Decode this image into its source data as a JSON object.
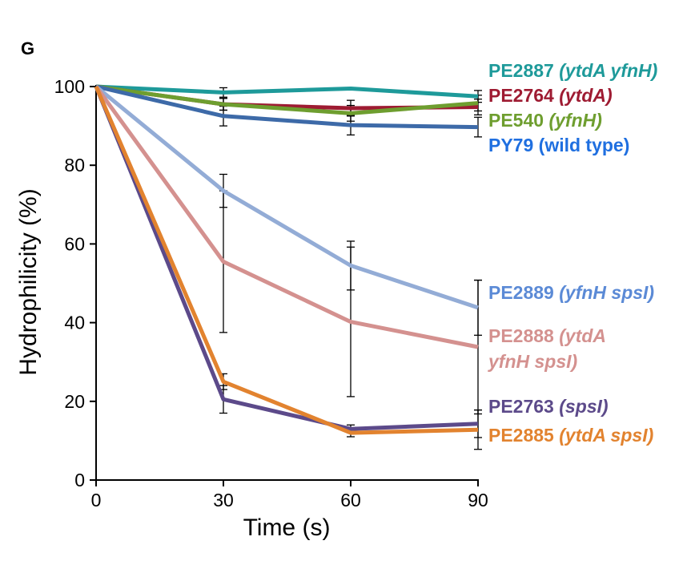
{
  "panel_label": "G",
  "colors": {
    "axis": "#000000",
    "error_bar": "#000000"
  },
  "chart_data": {
    "type": "line",
    "title": "",
    "xlabel": "Time (s)",
    "ylabel": "Hydrophilicity (%)",
    "x": [
      0,
      30,
      60,
      90
    ],
    "xlim": [
      0,
      90
    ],
    "ylim": [
      0,
      100
    ],
    "xticks": [
      "0",
      "30",
      "60",
      "90"
    ],
    "yticks": [
      "0",
      "20",
      "40",
      "60",
      "80",
      "100"
    ],
    "grid": false,
    "legend_placement": "right, next to line ends",
    "series": [
      {
        "name": "PE2887",
        "genotype": "(ytdA yfnH)",
        "color": "#1e9a9a",
        "values": [
          100,
          98.5,
          99.5,
          97.5
        ],
        "errors": [
          0,
          1.2,
          0,
          1.5
        ]
      },
      {
        "name": "PE2764",
        "genotype": "(ytdA)",
        "color": "#9e1b32",
        "values": [
          100,
          95.5,
          94.5,
          94.8
        ],
        "errors": [
          0,
          1.5,
          2,
          2
        ]
      },
      {
        "name": "PE540",
        "genotype": "(yfnH)",
        "color": "#6e9e2f",
        "values": [
          100,
          95.5,
          93.2,
          95.8
        ],
        "errors": [
          0,
          1.5,
          2,
          2
        ]
      },
      {
        "name": "PY79",
        "genotype": "(wild type)",
        "color": "#3d6aa8",
        "values": [
          100,
          92.5,
          90.2,
          89.7
        ],
        "errors": [
          0,
          2.5,
          2.5,
          2.5
        ]
      },
      {
        "name": "PE2889",
        "genotype": "(yfnH spsI)",
        "color": "#93acd6",
        "values": [
          100,
          73.5,
          54.5,
          43.8
        ],
        "errors": [
          0,
          4.2,
          6.2,
          7
        ]
      },
      {
        "name": "PE2888",
        "genotype": "(ytdA yfnH spsI)",
        "color": "#d4918f",
        "values": [
          100,
          55.5,
          40.2,
          33.8
        ],
        "errors": [
          0,
          18,
          19,
          17
        ]
      },
      {
        "name": "PE2763",
        "genotype": "(spsI)",
        "color": "#5c4a8a",
        "values": [
          100,
          20.5,
          13,
          14.3
        ],
        "errors": [
          0,
          3.5,
          1,
          3.5
        ]
      },
      {
        "name": "PE2885",
        "genotype": "(ytdA spsI)",
        "color": "#e2832f",
        "values": [
          100,
          25,
          12,
          12.8
        ],
        "errors": [
          0,
          2,
          1,
          5
        ]
      }
    ],
    "legend": [
      {
        "name": "PE2887",
        "genotype": "(ytdA yfnH)",
        "genotype_italic": true,
        "color": "#1e9a9a"
      },
      {
        "name": "PE2764",
        "genotype": "(ytdA)",
        "genotype_italic": true,
        "color": "#9e1b32"
      },
      {
        "name": "PE540",
        "genotype": "(yfnH)",
        "genotype_italic": true,
        "color": "#6e9e2f"
      },
      {
        "name": "PY79",
        "genotype": "(wild type)",
        "genotype_italic": false,
        "color": "#1f6fe0"
      },
      {
        "name": "PE2889",
        "genotype": "(yfnH spsI)",
        "genotype_italic": true,
        "color": "#5b8ad6"
      },
      {
        "name": "PE2888",
        "genotype": "(ytdA",
        "genotype_italic": true,
        "color": "#d4918f"
      },
      {
        "name": "",
        "genotype": "yfnH spsI)",
        "genotype_italic": true,
        "color": "#d4918f"
      },
      {
        "name": "PE2763",
        "genotype": "(spsI)",
        "genotype_italic": true,
        "color": "#5c4a8a"
      },
      {
        "name": "PE2885",
        "genotype": "(ytdA spsI)",
        "genotype_italic": true,
        "color": "#e2832f"
      }
    ]
  }
}
